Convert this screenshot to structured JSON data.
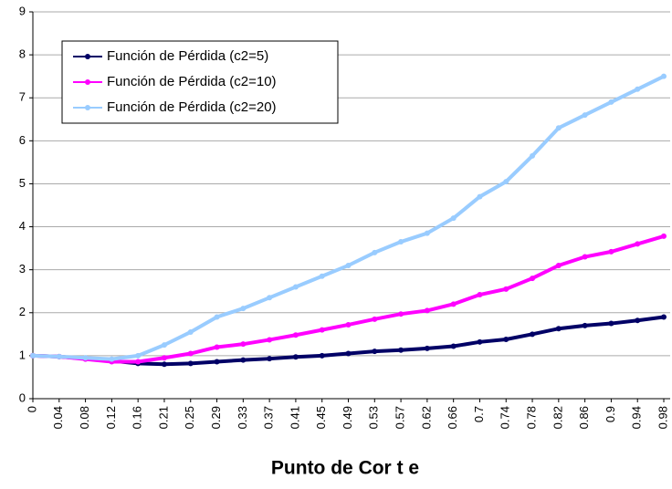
{
  "chart_data": {
    "type": "line",
    "x_label": "Punto de Cor t e",
    "categories": [
      "0",
      "0.04",
      "0.08",
      "0.12",
      "0.16",
      "0.21",
      "0.25",
      "0.29",
      "0.33",
      "0.37",
      "0.41",
      "0.45",
      "0.49",
      "0.53",
      "0.57",
      "0.62",
      "0.66",
      "0.7",
      "0.74",
      "0.78",
      "0.82",
      "0.86",
      "0.9",
      "0.94",
      "0.98"
    ],
    "series": [
      {
        "name": "Función de Pérdida (c2=5)",
        "color": "#000066",
        "values": [
          1,
          0.98,
          0.93,
          0.88,
          0.82,
          0.8,
          0.82,
          0.86,
          0.9,
          0.93,
          0.97,
          1.0,
          1.05,
          1.1,
          1.13,
          1.17,
          1.22,
          1.32,
          1.38,
          1.5,
          1.63,
          1.7,
          1.75,
          1.82,
          1.9
        ]
      },
      {
        "name": "Función de Pérdida (c2=10)",
        "color": "#ff00ff",
        "values": [
          1,
          0.98,
          0.92,
          0.86,
          0.86,
          0.95,
          1.05,
          1.2,
          1.27,
          1.37,
          1.48,
          1.6,
          1.72,
          1.85,
          1.97,
          2.05,
          2.2,
          2.42,
          2.55,
          2.8,
          3.1,
          3.3,
          3.42,
          3.6,
          3.78
        ]
      },
      {
        "name": "Función de Pérdida (c2=20)",
        "color": "#99ccff",
        "values": [
          1,
          0.98,
          0.95,
          0.92,
          1.0,
          1.25,
          1.55,
          1.9,
          2.1,
          2.35,
          2.6,
          2.85,
          3.1,
          3.4,
          3.65,
          3.85,
          4.2,
          4.7,
          5.05,
          5.65,
          6.3,
          6.6,
          6.9,
          7.2,
          7.5
        ]
      }
    ],
    "ylim": [
      0,
      9
    ],
    "yticks": [
      0,
      1,
      2,
      3,
      4,
      5,
      6,
      7,
      8,
      9
    ],
    "grid": true
  }
}
